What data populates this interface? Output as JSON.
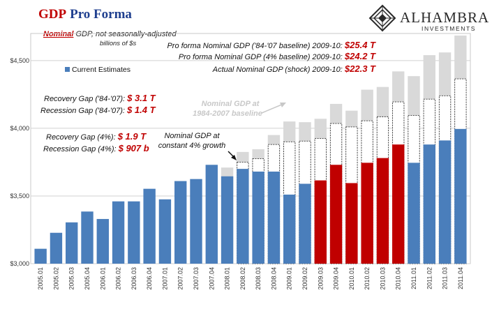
{
  "header": {
    "title_part1": "GDP",
    "title_part2": "Pro Forma",
    "subtitle_emph": "Nominal",
    "subtitle_rest": " GDP, not seasonally-adjusted",
    "subtitle_line2": "billions of $s"
  },
  "logo": {
    "name": "ALHAMBRA",
    "tagline": "INVESTMENTS",
    "icon": "alhambra-diamond-icon"
  },
  "legend": {
    "label": "Current Estimates",
    "color": "#4a7ebb",
    "placement": "left-top"
  },
  "summary": [
    {
      "label": "Pro forma Nominal GDP ('84-'07 baseline) 2009-10: ",
      "value": "$25.4 T"
    },
    {
      "label": "Pro forma Nominal GDP (4% baseline) 2009-10: ",
      "value": "$24.2 T"
    },
    {
      "label": "Actual Nominal GDP (shock) 2009-10: ",
      "value": "$22.3 T"
    }
  ],
  "gaps_1984": [
    {
      "label": "Recovery Gap ('84-'07): ",
      "value": "$ 3.1 T"
    },
    {
      "label": "Recession Gap ('84-'07): ",
      "value": "$ 1.4 T"
    }
  ],
  "gaps_4pct": [
    {
      "label": "Recovery Gap (4%): ",
      "value": "$ 1.9 T"
    },
    {
      "label": "Recession Gap (4%): ",
      "value": "$ 907 b"
    }
  ],
  "annotations": {
    "baseline_line1": "Nominal GDP at",
    "baseline_line2": "1984-2007 baseline",
    "growth_line1": "Nominal GDP at",
    "growth_line2": "constant 4% growth"
  },
  "colors": {
    "current": "#4a7ebb",
    "shock": "#c00000",
    "baseline_1984": "#d9d9d9",
    "baseline_4pct": "#ffffff",
    "accent_text": "#c00000",
    "title_blue": "#1f3f8f"
  },
  "chart_data": {
    "type": "bar",
    "ylim": [
      3000,
      4700
    ],
    "yticks": [
      3000,
      3500,
      4000,
      4500
    ],
    "ytick_labels": [
      "$3,000",
      "$3,500",
      "$4,000",
      "$4,500"
    ],
    "categories": [
      "2005.01",
      "2005.02",
      "2005.03",
      "2005.04",
      "2006.01",
      "2006.02",
      "2006.03",
      "2006.04",
      "2007.01",
      "2007.02",
      "2007.03",
      "2007.04",
      "2008.01",
      "2008.02",
      "2008.03",
      "2008.04",
      "2009.01",
      "2009.02",
      "2009.03",
      "2009.04",
      "2010.01",
      "2010.02",
      "2010.03",
      "2010.04",
      "2011.01",
      "2011.02",
      "2011.03",
      "2011.04"
    ],
    "series": [
      {
        "name": "Current Estimates",
        "values": [
          3110,
          3228,
          3305,
          3385,
          3330,
          3460,
          3460,
          3553,
          3475,
          3610,
          3625,
          3730,
          3645,
          3700,
          3680,
          3680,
          3510,
          3590,
          3615,
          3730,
          3595,
          3745,
          3780,
          3880,
          3745,
          3880,
          3910,
          3995
        ]
      }
    ],
    "shock_categories": [
      "2009.03",
      "2009.04",
      "2010.01",
      "2010.02",
      "2010.03",
      "2010.04"
    ],
    "baseline_4pct": [
      null,
      null,
      null,
      null,
      null,
      null,
      null,
      null,
      null,
      null,
      null,
      null,
      null,
      3750,
      3775,
      3880,
      3900,
      3905,
      3925,
      4035,
      4010,
      4055,
      4085,
      4195,
      4095,
      4215,
      4240,
      4365
    ],
    "baseline_1984": [
      null,
      null,
      null,
      null,
      null,
      null,
      null,
      null,
      null,
      null,
      null,
      null,
      3710,
      3825,
      3845,
      3950,
      4050,
      4045,
      4070,
      4180,
      4130,
      4285,
      4305,
      4420,
      4385,
      4540,
      4560,
      4685
    ]
  }
}
